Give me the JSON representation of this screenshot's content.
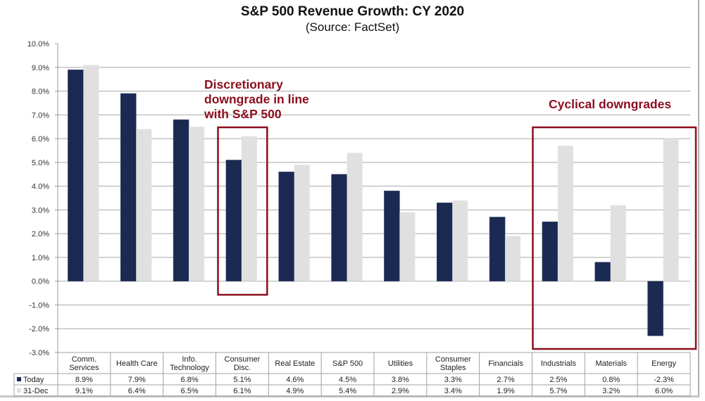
{
  "chart_data": {
    "type": "bar",
    "title": "S&P 500 Revenue Growth: CY 2020",
    "subtitle": "(Source: FactSet)",
    "xlabel": "",
    "ylabel": "",
    "ylim": [
      -3.0,
      10.0
    ],
    "yticks": [
      10.0,
      9.0,
      8.0,
      7.0,
      6.0,
      5.0,
      4.0,
      3.0,
      2.0,
      1.0,
      0.0,
      -1.0,
      -2.0,
      -3.0
    ],
    "ytick_labels": [
      "10.0%",
      "9.0%",
      "8.0%",
      "7.0%",
      "6.0%",
      "5.0%",
      "4.0%",
      "3.0%",
      "2.0%",
      "1.0%",
      "0.0%",
      "-1.0%",
      "-2.0%",
      "-3.0%"
    ],
    "grid": true,
    "legend_placement": "data-table-left",
    "categories": [
      [
        "Comm.",
        "Services"
      ],
      [
        "Health Care"
      ],
      [
        "Info.",
        "Technology"
      ],
      [
        "Consumer",
        "Disc."
      ],
      [
        "Real Estate"
      ],
      [
        "S&P 500"
      ],
      [
        "Utilities"
      ],
      [
        "Consumer",
        "Staples"
      ],
      [
        "Financials"
      ],
      [
        "Industrials"
      ],
      [
        "Materials"
      ],
      [
        "Energy"
      ]
    ],
    "series": [
      {
        "name": "Today",
        "color": "#1b2a52",
        "values": [
          8.9,
          7.9,
          6.8,
          5.1,
          4.6,
          4.5,
          3.8,
          3.3,
          2.7,
          2.5,
          0.8,
          -2.3
        ],
        "labels": [
          "8.9%",
          "7.9%",
          "6.8%",
          "5.1%",
          "4.6%",
          "4.5%",
          "3.8%",
          "3.3%",
          "2.7%",
          "2.5%",
          "0.8%",
          "-2.3%"
        ]
      },
      {
        "name": "31-Dec",
        "color": "#e0e0e0",
        "values": [
          9.1,
          6.4,
          6.5,
          6.1,
          4.9,
          5.4,
          2.9,
          3.4,
          1.9,
          5.7,
          3.2,
          6.0
        ],
        "labels": [
          "9.1%",
          "6.4%",
          "6.5%",
          "6.1%",
          "4.9%",
          "5.4%",
          "2.9%",
          "3.4%",
          "1.9%",
          "5.7%",
          "3.2%",
          "6.0%"
        ]
      }
    ],
    "annotations": [
      {
        "text": [
          "Discretionary",
          "downgrade in line",
          "with S&P 500"
        ],
        "color": "#8b0e1e",
        "highlights_categories": [
          "Consumer Disc."
        ]
      },
      {
        "text": [
          "Cyclical downgrades"
        ],
        "color": "#8b0e1e",
        "highlights_categories": [
          "Industrials",
          "Materials",
          "Energy"
        ]
      }
    ]
  }
}
